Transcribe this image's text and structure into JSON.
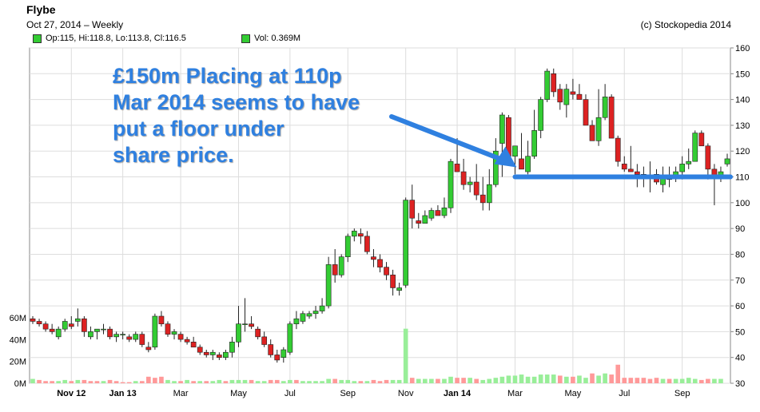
{
  "header": {
    "title": "Flybe",
    "date_label": "Oct 27, 2014 – Weekly",
    "copyright": "(c) Stockopedia 2014"
  },
  "legend": {
    "ohlc_label": "Op:115, Hi:118.8, Lo:113.8, Cl:116.5",
    "volume_label": "Vol: 0.369M"
  },
  "annotation": {
    "lines": [
      "£150m Placing at 110p",
      "Mar 2014 seems to have",
      "put a floor under",
      "share price."
    ]
  },
  "colors": {
    "up": "#33cc33",
    "down": "#dd2222",
    "vol_up": "#99ee99",
    "vol_down": "#ff9999",
    "annotation": "#2f80e0"
  },
  "chart_data": {
    "type": "candlestick",
    "price_axis": {
      "min": 30,
      "max": 160,
      "step": 10,
      "position": "right"
    },
    "volume_axis": {
      "ticks": [
        "0M",
        "20M",
        "40M",
        "60M"
      ],
      "values": [
        0,
        20,
        40,
        60
      ],
      "position": "left"
    },
    "x_tick_labels": [
      "Nov 12",
      "Jan 13",
      "Mar",
      "May",
      "Jul",
      "Sep",
      "Nov",
      "Jan 14",
      "Mar",
      "May",
      "Jul",
      "Sep"
    ],
    "x_tick_weeks": [
      6,
      14,
      23,
      32,
      40,
      49,
      58,
      66,
      75,
      84,
      92,
      101
    ],
    "bold_tick_labels": [
      "Nov 12",
      "Jan 13",
      "Jan 14"
    ],
    "grid": true,
    "support_level": {
      "value": 110,
      "from_week": 75
    },
    "candles": [
      [
        55,
        56,
        53,
        54
      ],
      [
        54,
        55,
        52,
        53
      ],
      [
        53,
        54,
        50,
        51
      ],
      [
        51,
        53,
        49,
        50
      ],
      [
        48,
        52,
        47,
        51
      ],
      [
        51,
        55,
        50,
        54
      ],
      [
        53,
        56,
        51,
        52
      ],
      [
        54,
        59,
        52,
        55
      ],
      [
        55,
        56,
        48,
        50
      ],
      [
        48,
        52,
        47,
        50
      ],
      [
        50,
        51,
        47,
        51
      ],
      [
        51,
        53,
        49,
        51
      ],
      [
        51,
        52,
        47,
        48
      ],
      [
        48,
        50,
        46,
        49
      ],
      [
        49,
        50,
        47,
        49
      ],
      [
        48,
        49,
        46,
        47
      ],
      [
        47,
        50,
        46,
        49
      ],
      [
        49,
        50,
        44,
        45
      ],
      [
        44,
        46,
        42,
        43
      ],
      [
        44,
        57,
        43,
        56
      ],
      [
        56,
        58,
        52,
        53
      ],
      [
        53,
        54,
        48,
        49
      ],
      [
        49,
        51,
        47,
        50
      ],
      [
        49,
        50,
        46,
        47
      ],
      [
        47,
        48,
        45,
        46
      ],
      [
        46,
        48,
        44,
        44
      ],
      [
        44,
        45,
        41,
        42
      ],
      [
        42,
        43,
        40,
        41
      ],
      [
        41,
        43,
        39,
        42
      ],
      [
        41,
        42,
        39,
        40
      ],
      [
        40,
        43,
        39,
        42
      ],
      [
        42,
        48,
        40,
        46
      ],
      [
        46,
        60,
        44,
        53
      ],
      [
        53,
        63,
        50,
        53
      ],
      [
        53,
        56,
        51,
        52
      ],
      [
        51,
        52,
        47,
        48
      ],
      [
        48,
        50,
        44,
        45
      ],
      [
        45,
        47,
        40,
        41
      ],
      [
        41,
        43,
        38,
        39
      ],
      [
        40,
        44,
        38,
        43
      ],
      [
        42,
        54,
        41,
        53
      ],
      [
        53,
        58,
        51,
        55
      ],
      [
        54,
        58,
        53,
        57
      ],
      [
        56,
        58,
        55,
        57
      ],
      [
        57,
        60,
        55,
        58
      ],
      [
        58,
        63,
        57,
        60
      ],
      [
        60,
        79,
        59,
        76
      ],
      [
        76,
        82,
        69,
        72
      ],
      [
        72,
        80,
        71,
        79
      ],
      [
        79,
        88,
        77,
        87
      ],
      [
        87,
        90,
        85,
        89
      ],
      [
        88,
        90,
        84,
        87
      ],
      [
        87,
        89,
        80,
        81
      ],
      [
        79,
        82,
        75,
        78
      ],
      [
        78,
        80,
        73,
        75
      ],
      [
        75,
        77,
        70,
        72
      ],
      [
        72,
        74,
        64,
        67
      ],
      [
        66,
        69,
        64,
        67
      ],
      [
        68,
        102,
        67,
        101
      ],
      [
        101,
        107,
        90,
        94
      ],
      [
        93,
        96,
        90,
        92
      ],
      [
        92,
        97,
        92,
        95
      ],
      [
        94,
        98,
        93,
        97
      ],
      [
        97,
        99,
        95,
        95
      ],
      [
        95,
        102,
        94,
        98
      ],
      [
        98,
        117,
        96,
        116
      ],
      [
        115,
        125,
        112,
        112
      ],
      [
        112,
        117,
        105,
        107
      ],
      [
        107,
        110,
        104,
        108
      ],
      [
        108,
        115,
        101,
        103
      ],
      [
        103,
        110,
        97,
        100
      ],
      [
        100,
        113,
        97,
        107
      ],
      [
        107,
        125,
        106,
        120
      ],
      [
        123,
        135,
        110,
        134
      ],
      [
        133,
        134,
        118,
        118
      ],
      [
        118,
        122,
        111,
        122
      ],
      [
        117,
        127,
        113,
        113
      ],
      [
        112,
        124,
        111,
        118
      ],
      [
        118,
        136,
        117,
        128
      ],
      [
        128,
        141,
        125,
        140
      ],
      [
        140,
        152,
        139,
        151
      ],
      [
        150,
        152,
        141,
        143
      ],
      [
        144,
        146,
        136,
        139
      ],
      [
        138,
        146,
        133,
        144
      ],
      [
        143,
        148,
        140,
        142
      ],
      [
        142,
        146,
        140,
        140
      ],
      [
        140,
        142,
        130,
        130
      ],
      [
        130,
        132,
        124,
        124
      ],
      [
        124,
        144,
        122,
        133
      ],
      [
        133,
        146,
        132,
        141
      ],
      [
        141,
        142,
        125,
        125
      ],
      [
        125,
        126,
        114,
        116
      ],
      [
        115,
        118,
        112,
        113
      ],
      [
        113,
        122,
        112,
        112
      ],
      [
        112,
        115,
        106,
        111
      ],
      [
        111,
        114,
        106,
        110
      ],
      [
        110,
        116,
        104,
        110
      ],
      [
        111,
        113,
        107,
        108
      ],
      [
        107,
        114,
        104,
        110
      ],
      [
        110,
        114,
        106,
        109
      ],
      [
        110,
        114,
        108,
        112
      ],
      [
        112,
        118,
        109,
        115
      ],
      [
        115,
        121,
        113,
        116
      ],
      [
        116,
        128,
        116,
        127
      ],
      [
        127,
        128,
        122,
        122
      ],
      [
        122,
        123,
        109,
        113
      ],
      [
        113,
        115,
        99,
        110
      ],
      [
        110,
        114,
        108,
        112
      ],
      [
        115,
        119,
        114,
        117
      ]
    ],
    "volumes": [
      [
        4,
        1
      ],
      [
        3,
        0
      ],
      [
        2,
        0
      ],
      [
        2,
        0
      ],
      [
        2,
        1
      ],
      [
        3,
        1
      ],
      [
        2,
        0
      ],
      [
        3,
        1
      ],
      [
        3,
        0
      ],
      [
        2,
        0
      ],
      [
        2,
        0
      ],
      [
        2,
        1
      ],
      [
        3,
        0
      ],
      [
        2,
        0
      ],
      [
        1,
        0
      ],
      [
        1,
        0
      ],
      [
        2,
        1
      ],
      [
        2,
        0
      ],
      [
        6,
        0
      ],
      [
        5,
        0
      ],
      [
        6,
        0
      ],
      [
        3,
        1
      ],
      [
        2,
        1
      ],
      [
        2,
        0
      ],
      [
        3,
        1
      ],
      [
        2,
        0
      ],
      [
        2,
        1
      ],
      [
        2,
        0
      ],
      [
        2,
        1
      ],
      [
        3,
        1
      ],
      [
        2,
        0
      ],
      [
        3,
        1
      ],
      [
        3,
        1
      ],
      [
        3,
        1
      ],
      [
        3,
        0
      ],
      [
        2,
        1
      ],
      [
        2,
        1
      ],
      [
        3,
        0
      ],
      [
        3,
        0
      ],
      [
        2,
        1
      ],
      [
        3,
        1
      ],
      [
        3,
        0
      ],
      [
        2,
        1
      ],
      [
        2,
        1
      ],
      [
        2,
        1
      ],
      [
        2,
        1
      ],
      [
        4,
        1
      ],
      [
        4,
        0
      ],
      [
        3,
        1
      ],
      [
        3,
        1
      ],
      [
        2,
        1
      ],
      [
        2,
        0
      ],
      [
        2,
        1
      ],
      [
        3,
        0
      ],
      [
        2,
        0
      ],
      [
        3,
        0
      ],
      [
        3,
        1
      ],
      [
        3,
        1
      ],
      [
        50,
        1
      ],
      [
        5,
        0
      ],
      [
        4,
        1
      ],
      [
        4,
        1
      ],
      [
        4,
        1
      ],
      [
        4,
        0
      ],
      [
        4,
        1
      ],
      [
        6,
        1
      ],
      [
        5,
        0
      ],
      [
        5,
        0
      ],
      [
        5,
        1
      ],
      [
        4,
        0
      ],
      [
        3,
        1
      ],
      [
        4,
        1
      ],
      [
        5,
        1
      ],
      [
        6,
        1
      ],
      [
        7,
        1
      ],
      [
        7,
        1
      ],
      [
        8,
        1
      ],
      [
        6,
        1
      ],
      [
        6,
        1
      ],
      [
        8,
        1
      ],
      [
        8,
        1
      ],
      [
        8,
        1
      ],
      [
        7,
        0
      ],
      [
        6,
        1
      ],
      [
        6,
        0
      ],
      [
        7,
        1
      ],
      [
        5,
        1
      ],
      [
        9,
        0
      ],
      [
        7,
        1
      ],
      [
        9,
        1
      ],
      [
        8,
        0
      ],
      [
        17,
        0
      ],
      [
        5,
        0
      ],
      [
        5,
        0
      ],
      [
        5,
        0
      ],
      [
        5,
        0
      ],
      [
        4,
        0
      ],
      [
        5,
        0
      ],
      [
        4,
        1
      ],
      [
        4,
        0
      ],
      [
        4,
        1
      ],
      [
        4,
        1
      ],
      [
        5,
        1
      ],
      [
        4,
        1
      ],
      [
        3,
        0
      ],
      [
        4,
        0
      ],
      [
        4,
        1
      ],
      [
        4,
        1
      ]
    ]
  }
}
